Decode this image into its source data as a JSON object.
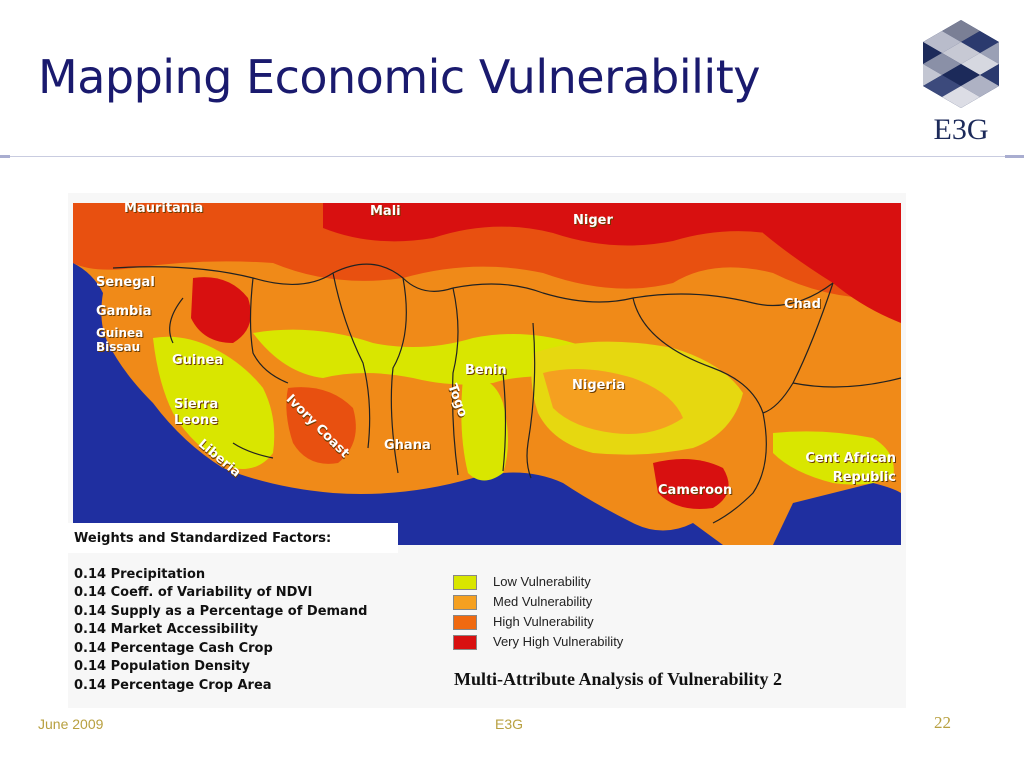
{
  "slide": {
    "title": "Mapping Economic Vulnerability",
    "logo_text": "E3G",
    "footer_date": "June 2009",
    "footer_org": "E3G",
    "page_number": "22"
  },
  "map": {
    "countries": [
      "Mauritania",
      "Mali",
      "Niger",
      "Senegal",
      "Gambia",
      "Guinea Bissau",
      "Guinea",
      "Chad",
      "Benin",
      "Nigeria",
      "Sierra Leone",
      "Ivory Coast",
      "Togo",
      "Ghana",
      "Liberia",
      "Cent African Republic",
      "Cameroon"
    ],
    "colors": {
      "ocean": "#1f2fa0",
      "low": "#d9e600",
      "med": "#f5a020",
      "high": "#f06a10",
      "very_high": "#d81010"
    }
  },
  "factors": {
    "title": "Weights and Standardized Factors:",
    "items": [
      "0.14 Precipitation",
      "0.14 Coeff. of Variability of NDVI",
      "0.14 Supply as a Percentage of Demand",
      "0.14 Market Accessibility",
      "0.14 Percentage Cash Crop",
      "0.14 Population Density",
      "0.14 Percentage Crop Area"
    ]
  },
  "legend": {
    "items": [
      {
        "label": "Low Vulnerability",
        "color": "#d9e600"
      },
      {
        "label": "Med Vulnerability",
        "color": "#f5a020"
      },
      {
        "label": "High Vulnerability",
        "color": "#f06a10"
      },
      {
        "label": "Very High Vulnerability",
        "color": "#d81010"
      }
    ]
  },
  "figure_caption": "Multi-Attribute Analysis of Vulnerability 2"
}
